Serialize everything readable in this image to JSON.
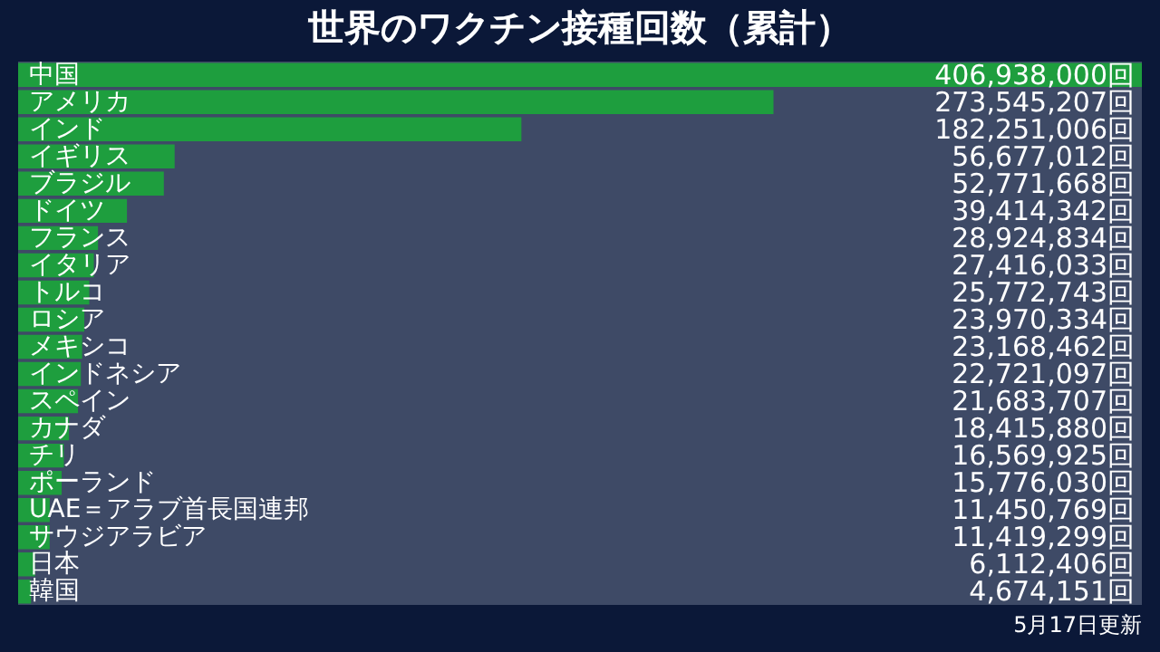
{
  "chart_data": {
    "type": "bar",
    "orientation": "horizontal",
    "title": "世界のワクチン接種回数（累計）",
    "categories": [
      "中国",
      "アメリカ",
      "インド",
      "イギリス",
      "ブラジル",
      "ドイツ",
      "フランス",
      "イタリア",
      "トルコ",
      "ロシア",
      "メキシコ",
      "インドネシア",
      "スペイン",
      "カナダ",
      "チリ",
      "ポーランド",
      "UAE＝アラブ首長国連邦",
      "サウジアラビア",
      "日本",
      "韓国"
    ],
    "values": [
      406938000,
      273545207,
      182251006,
      56677012,
      52771668,
      39414342,
      28924834,
      27416033,
      25772743,
      23970334,
      23168462,
      22721097,
      21683707,
      18415880,
      16569925,
      15776030,
      11450769,
      11419299,
      6112406,
      4674151
    ],
    "value_labels": [
      "406,938,000回",
      "273,545,207回",
      "182,251,006回",
      "56,677,012回",
      "52,771,668回",
      "39,414,342回",
      "28,924,834回",
      "27,416,033回",
      "25,772,743回",
      "23,970,334回",
      "23,168,462回",
      "22,721,097回",
      "21,683,707回",
      "18,415,880回",
      "16,569,925回",
      "15,776,030回",
      "11,450,769回",
      "11,419,299回",
      "6,112,406回",
      "4,674,151回"
    ],
    "color": "#1e9e3e",
    "annotations": [
      "5月17日更新"
    ]
  }
}
